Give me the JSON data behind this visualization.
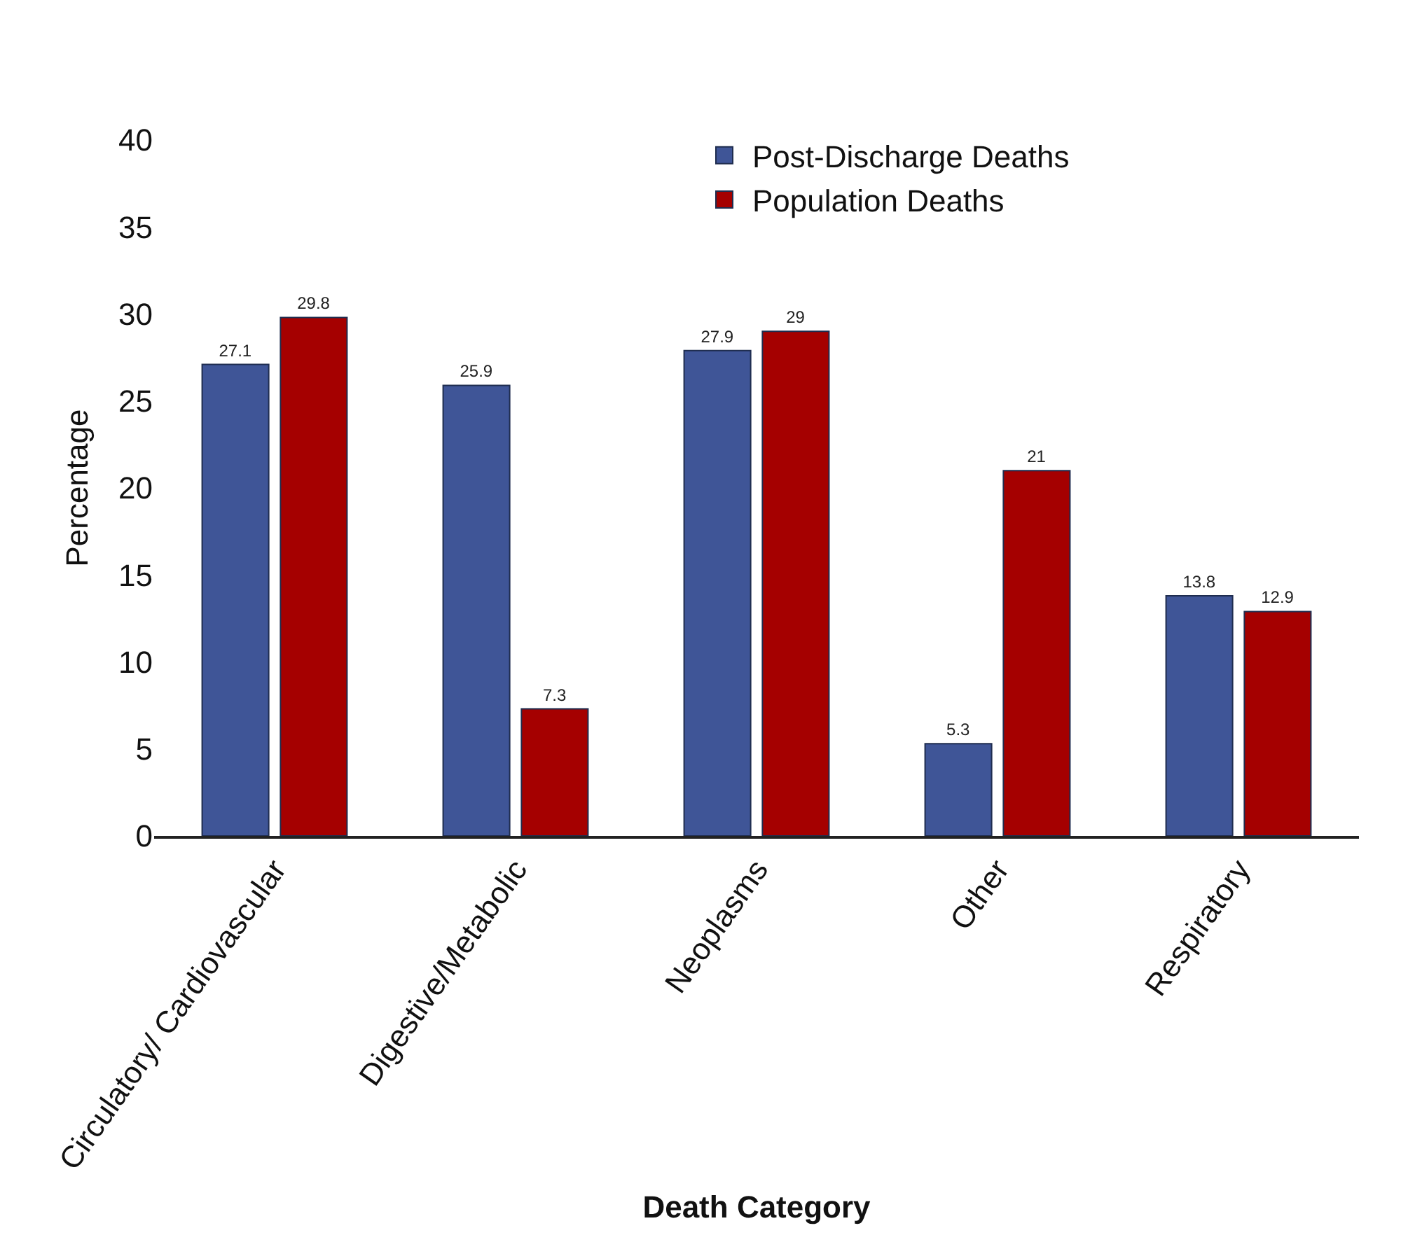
{
  "chart_data": {
    "type": "bar",
    "xlabel": "Death Category",
    "ylabel": "Percentage",
    "categories": [
      "Circulatory/ Cardiovascular",
      "Digestive/Metabolic",
      "Neoplasms",
      "Other",
      "Respiratory"
    ],
    "series": [
      {
        "name": "Post-Discharge Deaths",
        "color": "#3f5597",
        "values": [
          27.1,
          25.9,
          27.9,
          5.3,
          13.8
        ]
      },
      {
        "name": "Population Deaths",
        "color": "#a50000",
        "values": [
          29.8,
          7.3,
          29,
          21,
          12.9
        ]
      }
    ],
    "ylim": [
      0,
      40
    ],
    "yticks": [
      0,
      5,
      10,
      15,
      20,
      25,
      30,
      35,
      40
    ],
    "legend": "top right",
    "data_labels": true
  }
}
